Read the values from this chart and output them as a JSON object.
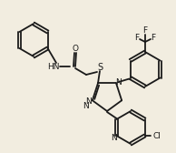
{
  "bg_color": "#f2ede0",
  "line_color": "#1a1a1a",
  "lw": 1.3,
  "fs": 6.5
}
